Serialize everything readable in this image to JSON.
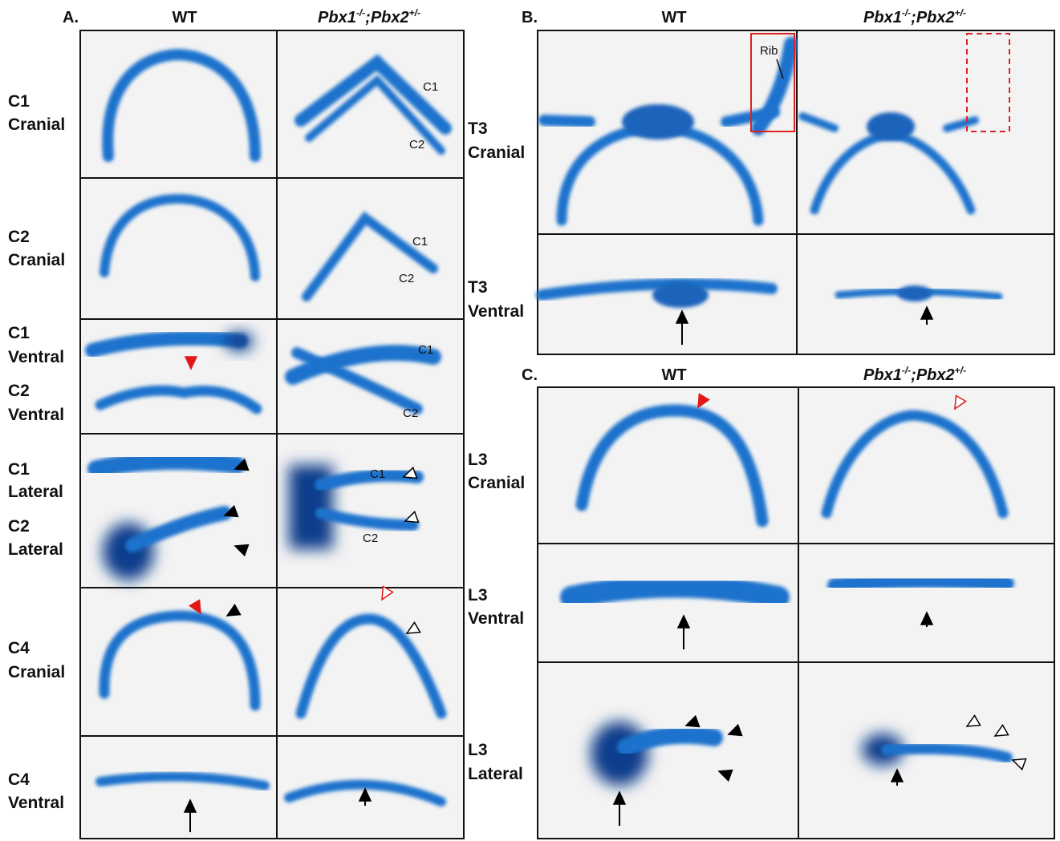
{
  "panel_a": {
    "label": "A.",
    "columns": {
      "wt": "WT",
      "mutant": {
        "gene1": "Pbx1",
        "sup1": "-/-",
        "gene2": ";Pbx2",
        "sup2": "+/-"
      }
    },
    "row_labels": [
      [
        "C1",
        "Cranial"
      ],
      [
        "C2",
        "Cranial"
      ],
      [
        "C1",
        "Ventral"
      ],
      [
        "C2",
        "Ventral"
      ],
      [
        "C1",
        "Lateral"
      ],
      [
        "C2",
        "Lateral"
      ],
      [
        "C4",
        "Cranial"
      ],
      [
        "C4",
        "Ventral"
      ]
    ],
    "annotations": [
      "C1",
      "C2",
      "C1",
      "C2",
      "C1",
      "C2",
      "C1",
      "C2"
    ]
  },
  "panel_b": {
    "label": "B.",
    "columns": {
      "wt": "WT",
      "mutant": {
        "gene1": "Pbx1",
        "sup1": "-/-",
        "gene2": ";Pbx2",
        "sup2": "+/-"
      }
    },
    "row_labels": [
      [
        "T3",
        "Cranial"
      ],
      [
        "T3",
        "Ventral"
      ]
    ],
    "annotations": [
      "Rib"
    ]
  },
  "panel_c": {
    "label": "C.",
    "columns": {
      "wt": "WT",
      "mutant": {
        "gene1": "Pbx1",
        "sup1": "-/-",
        "gene2": ";Pbx2",
        "sup2": "+/-"
      }
    },
    "row_labels": [
      [
        "L3",
        "Cranial"
      ],
      [
        "L3",
        "Ventral"
      ],
      [
        "L3",
        "Lateral"
      ]
    ]
  }
}
